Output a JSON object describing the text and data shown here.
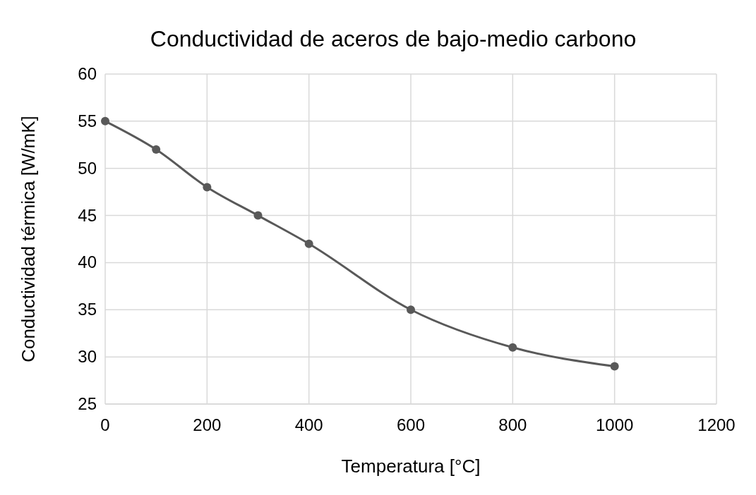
{
  "chart_data": {
    "type": "line",
    "title": "Conductividad de aceros de bajo-medio carbono",
    "xlabel": "Temperatura [°C]",
    "ylabel": "Conductividad térmica [W/mK]",
    "x": [
      0,
      100,
      200,
      300,
      400,
      600,
      800,
      1000
    ],
    "series": [
      {
        "color": "#595959",
        "values": [
          55,
          52,
          48,
          45,
          42,
          35,
          31,
          29
        ]
      }
    ],
    "xlim": [
      0,
      1200
    ],
    "xticks": [
      0,
      200,
      400,
      600,
      800,
      1000,
      1200
    ],
    "ylim": [
      25,
      60
    ],
    "yticks": [
      25,
      30,
      35,
      40,
      45,
      50,
      55,
      60
    ],
    "grid": true,
    "marker": "circle",
    "line_style": "solid"
  }
}
